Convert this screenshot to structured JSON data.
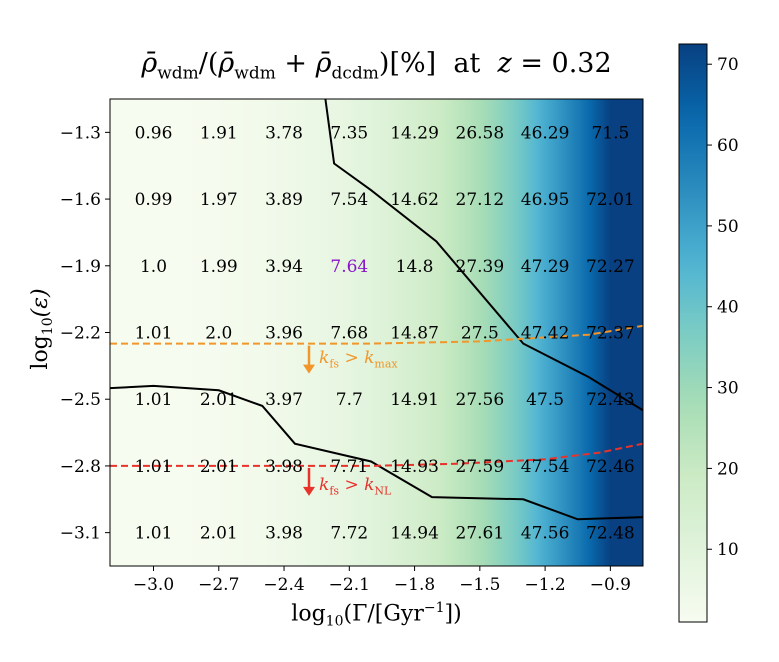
{
  "title": {
    "rho": "ρ̄",
    "wdm": "wdm",
    "dcdm": "dcdm",
    "percent": "[%]",
    "at": "at",
    "z_label": "z",
    "eq": "=",
    "z_value": "0.32"
  },
  "xlabel": {
    "log": "log",
    "base": "10",
    "open": "(Γ/[Gyr",
    "exp": "−1",
    "close": "])"
  },
  "ylabel": {
    "log": "log",
    "base": "10",
    "body": "(ε)"
  },
  "annotations": {
    "kmax": {
      "k": "k",
      "sub": "fs",
      "op": ">",
      "k2": "k",
      "sub2": "max"
    },
    "knl": {
      "k": "k",
      "sub": "fs",
      "op": ">",
      "k2": "k",
      "sub2": "NL"
    }
  },
  "colors": {
    "orange": "#f0962a",
    "red": "#e8322b",
    "highlight": "#8a14c8",
    "curve": "#000000"
  },
  "chart_data": {
    "type": "heatmap",
    "title": "ρ̄wdm/(ρ̄wdm+ρ̄dcdm)[%] at z = 0.32",
    "xlabel": "log10(Γ/[Gyr−1])",
    "ylabel": "log10(ε)",
    "xlim": [
      -3.2,
      -0.75
    ],
    "ylim": [
      -3.25,
      -1.15
    ],
    "x": [
      -3.0,
      -2.7,
      -2.4,
      -2.1,
      -1.8,
      -1.5,
      -1.2,
      -0.9
    ],
    "y": [
      -1.3,
      -1.6,
      -1.9,
      -2.2,
      -2.5,
      -2.8,
      -3.1
    ],
    "x_ticks": [
      "−3.0",
      "−2.7",
      "−2.4",
      "−2.1",
      "−1.8",
      "−1.5",
      "−1.2",
      "−0.9"
    ],
    "y_ticks": [
      "−1.3",
      "−1.6",
      "−1.9",
      "−2.2",
      "−2.5",
      "−2.8",
      "−3.1"
    ],
    "values": [
      [
        "0.96",
        "1.91",
        "3.78",
        "7.35",
        "14.29",
        "26.58",
        "46.29",
        "71.5"
      ],
      [
        "0.99",
        "1.97",
        "3.89",
        "7.54",
        "14.62",
        "27.12",
        "46.95",
        "72.01"
      ],
      [
        "1.0",
        "1.99",
        "3.94",
        "7.64",
        "14.8",
        "27.39",
        "47.29",
        "72.27"
      ],
      [
        "1.01",
        "2.0",
        "3.96",
        "7.68",
        "14.87",
        "27.5",
        "47.42",
        "72.37"
      ],
      [
        "1.01",
        "2.01",
        "3.97",
        "7.7",
        "14.91",
        "27.56",
        "47.5",
        "72.43"
      ],
      [
        "1.01",
        "2.01",
        "3.98",
        "7.71",
        "14.93",
        "27.59",
        "47.54",
        "72.46"
      ],
      [
        "1.01",
        "2.01",
        "3.98",
        "7.72",
        "14.94",
        "27.61",
        "47.56",
        "72.48"
      ]
    ],
    "highlight_cell": {
      "row": 2,
      "col": 3
    },
    "colorbar": {
      "vmin": 1.0,
      "vmax": 72.5,
      "ticks": [
        10,
        20,
        30,
        40,
        50,
        60,
        70
      ],
      "tick_labels": [
        "10",
        "20",
        "30",
        "40",
        "50",
        "60",
        "70"
      ],
      "colormap": "GnBu"
    },
    "curves": {
      "upper_black": [
        [
          -2.21,
          -1.15
        ],
        [
          -2.17,
          -1.44
        ],
        [
          -2.0,
          -1.56
        ],
        [
          -1.7,
          -1.79
        ],
        [
          -1.3,
          -2.25
        ],
        [
          -1.0,
          -2.4
        ],
        [
          -0.75,
          -2.55
        ]
      ],
      "lower_black": [
        [
          -3.2,
          -2.45
        ],
        [
          -3.0,
          -2.44
        ],
        [
          -2.7,
          -2.46
        ],
        [
          -2.5,
          -2.53
        ],
        [
          -2.35,
          -2.7
        ],
        [
          -2.0,
          -2.78
        ],
        [
          -1.72,
          -2.94
        ],
        [
          -1.3,
          -2.95
        ],
        [
          -1.05,
          -3.04
        ],
        [
          -0.75,
          -3.03
        ]
      ],
      "kmax_boundary": [
        [
          -3.2,
          -2.25
        ],
        [
          -2.0,
          -2.25
        ],
        [
          -1.5,
          -2.24
        ],
        [
          -1.0,
          -2.21
        ],
        [
          -0.75,
          -2.17
        ]
      ],
      "knl_boundary": [
        [
          -3.2,
          -2.8
        ],
        [
          -2.0,
          -2.8
        ],
        [
          -1.6,
          -2.79
        ],
        [
          -1.2,
          -2.77
        ],
        [
          -0.95,
          -2.74
        ],
        [
          -0.75,
          -2.7
        ]
      ]
    }
  }
}
